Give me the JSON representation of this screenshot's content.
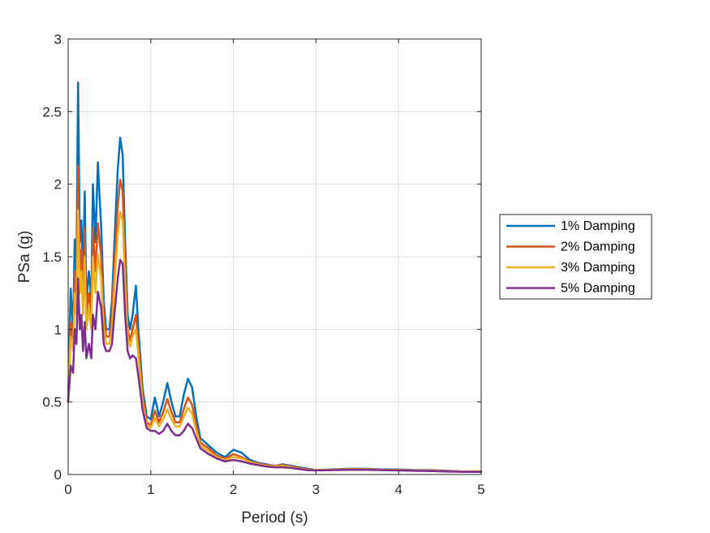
{
  "chart_data": {
    "type": "line",
    "xlabel": "Period (s)",
    "ylabel": "PSa (g)",
    "xlim": [
      0,
      5
    ],
    "ylim": [
      0,
      3
    ],
    "xticks": [
      0,
      1,
      2,
      3,
      4,
      5
    ],
    "yticks": [
      0,
      0.5,
      1,
      1.5,
      2,
      2.5,
      3
    ],
    "xtick_labels": [
      "0",
      "1",
      "2",
      "3",
      "4",
      "5"
    ],
    "ytick_labels": [
      "0",
      "0.5",
      "1",
      "1.5",
      "2",
      "2.5",
      "3"
    ],
    "grid": true,
    "legend_position": "outside-right",
    "series": [
      {
        "name": "1% Damping",
        "color": "#0072BD",
        "x": [
          0,
          0.03,
          0.06,
          0.08,
          0.1,
          0.12,
          0.14,
          0.16,
          0.18,
          0.2,
          0.22,
          0.25,
          0.28,
          0.3,
          0.33,
          0.36,
          0.4,
          0.43,
          0.46,
          0.5,
          0.53,
          0.56,
          0.6,
          0.63,
          0.66,
          0.69,
          0.72,
          0.75,
          0.78,
          0.82,
          0.85,
          0.9,
          0.95,
          1.0,
          1.05,
          1.1,
          1.15,
          1.2,
          1.25,
          1.3,
          1.35,
          1.4,
          1.45,
          1.5,
          1.55,
          1.6,
          1.7,
          1.8,
          1.9,
          2.0,
          2.1,
          2.2,
          2.3,
          2.4,
          2.5,
          2.6,
          2.7,
          2.8,
          2.9,
          3.0,
          3.2,
          3.4,
          3.6,
          3.8,
          4.0,
          4.2,
          4.4,
          4.6,
          4.8,
          5.0
        ],
        "y": [
          0.5,
          1.28,
          1.0,
          1.62,
          1.4,
          2.7,
          1.6,
          1.75,
          1.35,
          1.95,
          1.2,
          1.4,
          1.2,
          2.0,
          1.6,
          2.15,
          1.7,
          1.2,
          1.0,
          1.0,
          1.2,
          1.6,
          2.1,
          2.32,
          2.2,
          1.6,
          1.1,
          1.0,
          1.1,
          1.3,
          1.0,
          0.6,
          0.4,
          0.38,
          0.53,
          0.4,
          0.5,
          0.63,
          0.5,
          0.4,
          0.4,
          0.55,
          0.66,
          0.6,
          0.4,
          0.25,
          0.2,
          0.15,
          0.12,
          0.17,
          0.15,
          0.1,
          0.08,
          0.07,
          0.06,
          0.07,
          0.06,
          0.05,
          0.04,
          0.03,
          0.035,
          0.04,
          0.04,
          0.035,
          0.035,
          0.03,
          0.03,
          0.025,
          0.02,
          0.02
        ]
      },
      {
        "name": "2% Damping",
        "color": "#D95319",
        "x": [
          0,
          0.03,
          0.06,
          0.08,
          0.1,
          0.12,
          0.14,
          0.16,
          0.18,
          0.2,
          0.22,
          0.25,
          0.28,
          0.3,
          0.33,
          0.36,
          0.4,
          0.43,
          0.46,
          0.5,
          0.53,
          0.56,
          0.6,
          0.63,
          0.66,
          0.69,
          0.72,
          0.75,
          0.78,
          0.82,
          0.85,
          0.9,
          0.95,
          1.0,
          1.05,
          1.1,
          1.15,
          1.2,
          1.25,
          1.3,
          1.35,
          1.4,
          1.45,
          1.5,
          1.55,
          1.6,
          1.7,
          1.8,
          1.9,
          2.0,
          2.1,
          2.2,
          2.3,
          2.4,
          2.5,
          2.6,
          2.7,
          2.8,
          2.9,
          3.0,
          3.2,
          3.4,
          3.6,
          3.8,
          4.0,
          4.2,
          4.4,
          4.6,
          4.8,
          5.0
        ],
        "y": [
          0.5,
          1.05,
          0.9,
          1.4,
          1.2,
          2.13,
          1.4,
          1.55,
          1.2,
          1.7,
          1.1,
          1.25,
          1.1,
          1.7,
          1.4,
          1.73,
          1.5,
          1.1,
          0.95,
          0.95,
          1.1,
          1.45,
          1.85,
          2.03,
          1.95,
          1.45,
          1.0,
          0.92,
          1.0,
          1.1,
          0.9,
          0.55,
          0.36,
          0.34,
          0.44,
          0.36,
          0.43,
          0.52,
          0.43,
          0.36,
          0.36,
          0.45,
          0.53,
          0.48,
          0.34,
          0.22,
          0.18,
          0.13,
          0.11,
          0.14,
          0.12,
          0.09,
          0.075,
          0.065,
          0.06,
          0.065,
          0.055,
          0.045,
          0.035,
          0.03,
          0.033,
          0.037,
          0.037,
          0.033,
          0.032,
          0.028,
          0.028,
          0.023,
          0.02,
          0.02
        ]
      },
      {
        "name": "3% Damping",
        "color": "#EDB120",
        "x": [
          0,
          0.03,
          0.06,
          0.08,
          0.1,
          0.12,
          0.14,
          0.16,
          0.18,
          0.2,
          0.22,
          0.25,
          0.28,
          0.3,
          0.33,
          0.36,
          0.4,
          0.43,
          0.46,
          0.5,
          0.53,
          0.56,
          0.6,
          0.63,
          0.66,
          0.69,
          0.72,
          0.75,
          0.78,
          0.82,
          0.85,
          0.9,
          0.95,
          1.0,
          1.05,
          1.1,
          1.15,
          1.2,
          1.25,
          1.3,
          1.35,
          1.4,
          1.45,
          1.5,
          1.55,
          1.6,
          1.7,
          1.8,
          1.9,
          2.0,
          2.1,
          2.2,
          2.3,
          2.4,
          2.5,
          2.6,
          2.7,
          2.8,
          2.9,
          3.0,
          3.2,
          3.4,
          3.6,
          3.8,
          4.0,
          4.2,
          4.4,
          4.6,
          4.8,
          5.0
        ],
        "y": [
          0.5,
          0.95,
          0.85,
          1.25,
          1.1,
          1.82,
          1.25,
          1.4,
          1.1,
          1.5,
          1.0,
          1.15,
          1.0,
          1.5,
          1.25,
          1.52,
          1.35,
          1.0,
          0.9,
          0.9,
          1.0,
          1.3,
          1.65,
          1.81,
          1.75,
          1.3,
          0.95,
          0.88,
          0.95,
          1.0,
          0.82,
          0.5,
          0.34,
          0.32,
          0.39,
          0.33,
          0.38,
          0.45,
          0.38,
          0.33,
          0.33,
          0.4,
          0.46,
          0.42,
          0.3,
          0.2,
          0.16,
          0.12,
          0.1,
          0.12,
          0.11,
          0.085,
          0.07,
          0.06,
          0.055,
          0.06,
          0.05,
          0.04,
          0.033,
          0.03,
          0.032,
          0.035,
          0.035,
          0.032,
          0.03,
          0.027,
          0.026,
          0.022,
          0.02,
          0.02
        ]
      },
      {
        "name": "5% Damping",
        "color": "#7E2F8E",
        "x": [
          0,
          0.03,
          0.06,
          0.08,
          0.1,
          0.12,
          0.14,
          0.16,
          0.18,
          0.2,
          0.22,
          0.25,
          0.28,
          0.3,
          0.33,
          0.36,
          0.4,
          0.43,
          0.46,
          0.5,
          0.53,
          0.56,
          0.6,
          0.63,
          0.66,
          0.69,
          0.72,
          0.75,
          0.78,
          0.82,
          0.85,
          0.9,
          0.95,
          1.0,
          1.05,
          1.1,
          1.15,
          1.2,
          1.25,
          1.3,
          1.35,
          1.4,
          1.45,
          1.5,
          1.55,
          1.6,
          1.7,
          1.8,
          1.9,
          2.0,
          2.1,
          2.2,
          2.3,
          2.4,
          2.5,
          2.6,
          2.7,
          2.8,
          2.9,
          3.0,
          3.2,
          3.4,
          3.6,
          3.8,
          4.0,
          4.2,
          4.4,
          4.6,
          4.8,
          5.0
        ],
        "y": [
          0.5,
          0.75,
          0.7,
          1.0,
          0.9,
          1.35,
          1.0,
          1.1,
          0.85,
          1.05,
          0.8,
          0.9,
          0.8,
          1.1,
          1.0,
          1.26,
          1.15,
          0.9,
          0.85,
          0.85,
          0.9,
          1.1,
          1.35,
          1.48,
          1.45,
          1.1,
          0.85,
          0.8,
          0.82,
          0.8,
          0.68,
          0.45,
          0.32,
          0.3,
          0.3,
          0.28,
          0.3,
          0.35,
          0.3,
          0.27,
          0.27,
          0.3,
          0.35,
          0.32,
          0.25,
          0.18,
          0.14,
          0.11,
          0.09,
          0.1,
          0.09,
          0.075,
          0.065,
          0.055,
          0.05,
          0.05,
          0.045,
          0.037,
          0.03,
          0.028,
          0.03,
          0.032,
          0.032,
          0.03,
          0.028,
          0.025,
          0.024,
          0.02,
          0.018,
          0.018
        ]
      }
    ]
  }
}
